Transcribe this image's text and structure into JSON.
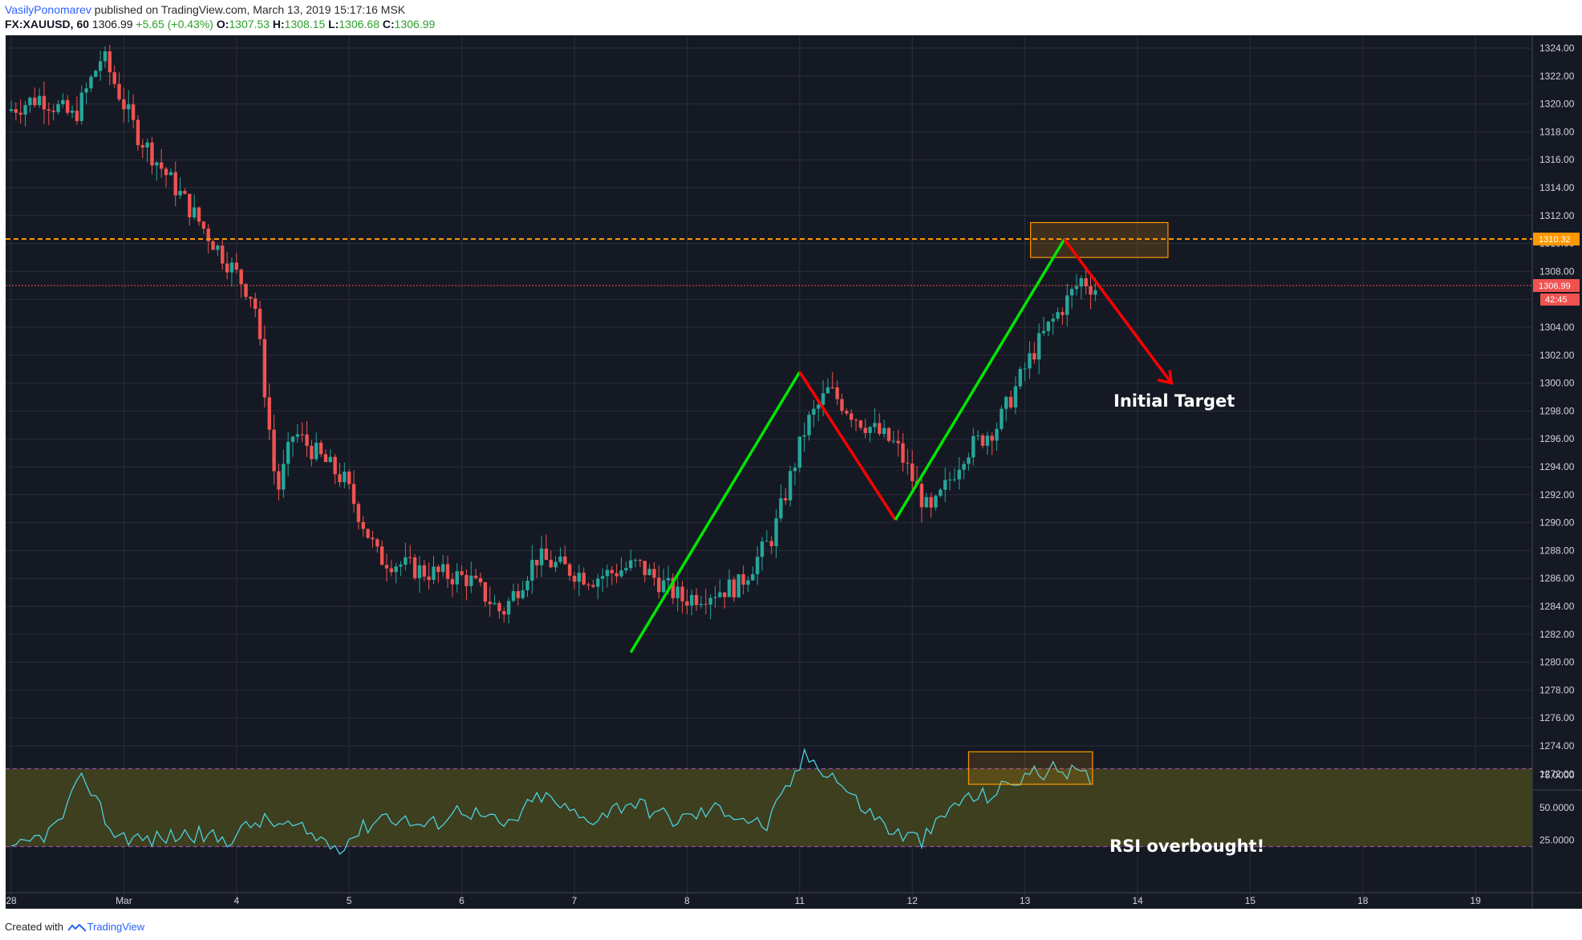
{
  "header": {
    "author": "VasilyPonomarev",
    "published_text": " published on TradingView.com, March 13, 2019 15:17:16 MSK",
    "symbol": "FX:XAUUSD, 60",
    "last": "1306.99",
    "change": "+5.65 (+0.43%)",
    "o_label": "O:",
    "o_value": "1307.53",
    "h_label": "H:",
    "h_value": "1308.15",
    "l_label": "L:",
    "l_value": "1306.68",
    "c_label": "C:",
    "c_value": "1306.99"
  },
  "footer": {
    "created_with": "Created with",
    "brand": "TradingView"
  },
  "colors": {
    "background": "#151924",
    "grid": "#2a2e39",
    "up_candle": "#26a69a",
    "down_candle": "#ef5350",
    "resistance": "#ff9800",
    "current_price": "#ef5350",
    "pattern_up": "#00e600",
    "pattern_down": "#ff0000",
    "rsi_line": "#4dd0e1",
    "rsi_band": "#3d3f1e",
    "rsi_levels": "#b04fd0"
  },
  "chart_data": [
    {
      "type": "candlestick",
      "symbol": "FX:XAUUSD",
      "interval": "60",
      "x_tick_labels": [
        "28",
        "Mar",
        "4",
        "5",
        "6",
        "7",
        "8",
        "11",
        "12",
        "13",
        "14",
        "15",
        "18",
        "19"
      ],
      "y_tick_labels": [
        "1324.00",
        "1322.00",
        "1320.00",
        "1318.00",
        "1316.00",
        "1314.00",
        "1312.00",
        "1310.00",
        "1308.00",
        "1306.00",
        "1304.00",
        "1302.00",
        "1300.00",
        "1298.00",
        "1296.00",
        "1294.00",
        "1292.00",
        "1290.00",
        "1288.00",
        "1286.00",
        "1284.00",
        "1282.00",
        "1280.00",
        "1278.00",
        "1276.00",
        "1274.00",
        "1272.00"
      ],
      "ylim": [
        1270.5,
        1324.8
      ],
      "price_path_approx": [
        [
          0.0,
          1319.5
        ],
        [
          0.3,
          1320.5
        ],
        [
          0.6,
          1319.0
        ],
        [
          0.85,
          1323.5
        ],
        [
          1.15,
          1318.0
        ],
        [
          1.5,
          1314.0
        ],
        [
          1.8,
          1310.5
        ],
        [
          2.2,
          1306.0
        ],
        [
          2.4,
          1292.0
        ],
        [
          2.55,
          1296.5
        ],
        [
          3.0,
          1293.0
        ],
        [
          3.3,
          1287.5
        ],
        [
          3.7,
          1286.5
        ],
        [
          4.1,
          1286.0
        ],
        [
          4.4,
          1283.5
        ],
        [
          4.7,
          1287.5
        ],
        [
          5.2,
          1286.0
        ],
        [
          5.6,
          1287.0
        ],
        [
          6.0,
          1284.5
        ],
        [
          6.5,
          1285.5
        ],
        [
          6.8,
          1289.0
        ],
        [
          7.1,
          1297.0
        ],
        [
          7.3,
          1299.5
        ],
        [
          7.55,
          1297.5
        ],
        [
          7.9,
          1295.5
        ],
        [
          8.2,
          1290.5
        ],
        [
          8.5,
          1295.0
        ],
        [
          8.8,
          1297.0
        ],
        [
          9.1,
          1302.0
        ],
        [
          9.25,
          1304.0
        ],
        [
          9.55,
          1307.5
        ],
        [
          9.65,
          1306.8
        ]
      ],
      "last_price": 1306.99,
      "last_price_label": "1306.99",
      "countdown_label": "42:45",
      "resistance_level": 1310.32,
      "resistance_label": "1310.32",
      "annotations": [
        "Initial Target"
      ]
    },
    {
      "type": "line",
      "name": "RSI",
      "y_tick_labels": [
        "75.0000",
        "50.0000",
        "25.0000"
      ],
      "ylim": [
        0,
        100
      ],
      "levels": [
        80,
        20
      ],
      "values_approx": [
        [
          0.0,
          15
        ],
        [
          0.4,
          35
        ],
        [
          0.65,
          75
        ],
        [
          0.9,
          30
        ],
        [
          1.2,
          25
        ],
        [
          1.6,
          30
        ],
        [
          1.9,
          25
        ],
        [
          2.2,
          40
        ],
        [
          2.5,
          35
        ],
        [
          2.9,
          20
        ],
        [
          3.3,
          45
        ],
        [
          3.7,
          35
        ],
        [
          4.0,
          50
        ],
        [
          4.4,
          35
        ],
        [
          4.7,
          60
        ],
        [
          5.1,
          40
        ],
        [
          5.5,
          55
        ],
        [
          5.9,
          40
        ],
        [
          6.3,
          50
        ],
        [
          6.7,
          35
        ],
        [
          7.05,
          90
        ],
        [
          7.3,
          75
        ],
        [
          7.5,
          55
        ],
        [
          7.85,
          30
        ],
        [
          8.1,
          25
        ],
        [
          8.4,
          55
        ],
        [
          8.7,
          60
        ],
        [
          9.0,
          75
        ],
        [
          9.35,
          80
        ],
        [
          9.6,
          70
        ]
      ],
      "annotations": [
        "RSI overbought!"
      ]
    }
  ]
}
